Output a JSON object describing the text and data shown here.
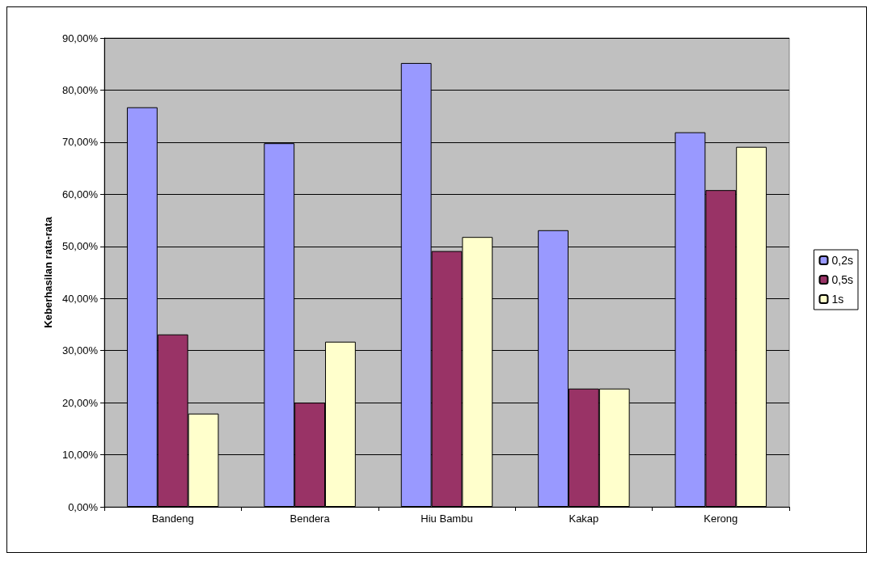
{
  "chart_data": {
    "type": "bar",
    "ylabel": "Keberhasilan rata-rata",
    "categories": [
      "Bandeng",
      "Bendera",
      "Hiu Bambu",
      "Kakap",
      "Kerong"
    ],
    "series": [
      {
        "name": "0,2s",
        "color": "#9999ff",
        "values": [
          76.7,
          69.8,
          85.2,
          53.1,
          71.9
        ]
      },
      {
        "name": "0,5s",
        "color": "#993366",
        "values": [
          33.1,
          20.0,
          49.1,
          22.7,
          60.8
        ]
      },
      {
        "name": "1s",
        "color": "#ffffcc",
        "values": [
          17.9,
          31.7,
          51.8,
          22.7,
          69.1
        ]
      }
    ],
    "ylim": [
      0,
      90
    ],
    "yticks": [
      {
        "value": 0,
        "label": "0,00%"
      },
      {
        "value": 10,
        "label": "10,00%"
      },
      {
        "value": 20,
        "label": "20,00%"
      },
      {
        "value": 30,
        "label": "30,00%"
      },
      {
        "value": 40,
        "label": "40,00%"
      },
      {
        "value": 50,
        "label": "50,00%"
      },
      {
        "value": 60,
        "label": "60,00%"
      },
      {
        "value": 70,
        "label": "70,00%"
      },
      {
        "value": 80,
        "label": "80,00%"
      },
      {
        "value": 90,
        "label": "90,00%"
      }
    ],
    "grid": "y",
    "legend": "right"
  }
}
